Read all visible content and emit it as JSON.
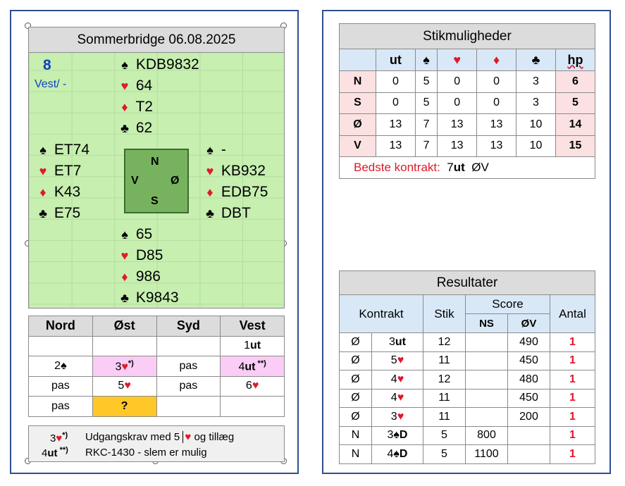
{
  "deal": {
    "title": "Sommerbridge 06.08.2025",
    "board_number": "8",
    "dealer_vul": "Vest/ -",
    "compass": {
      "n": "N",
      "s": "S",
      "w": "V",
      "e": "Ø"
    },
    "north": {
      "spades": "KDB9832",
      "hearts": "64",
      "diamonds": "T2",
      "clubs": "62"
    },
    "west": {
      "spades": "ET74",
      "hearts": "ET7",
      "diamonds": "K43",
      "clubs": "E75"
    },
    "east": {
      "spades": "-",
      "hearts": "KB932",
      "diamonds": "EDB75",
      "clubs": "DBT"
    },
    "south": {
      "spades": "65",
      "hearts": "D85",
      "diamonds": "986",
      "clubs": "K9843"
    },
    "suit_symbols": {
      "spades": "♠",
      "hearts": "♥",
      "diamonds": "♦",
      "clubs": "♣"
    }
  },
  "bidding": {
    "headers": [
      "Nord",
      "Øst",
      "Syd",
      "Vest"
    ],
    "r1": {
      "w_level": "1",
      "w_strain": "ut"
    },
    "r2": {
      "n_level": "2",
      "e_level": "3",
      "e_mark": "*)",
      "s": "pas",
      "w_level": "4",
      "w_strain": "ut",
      "w_mark": " **)"
    },
    "r3": {
      "n": "pas",
      "e_level": "5",
      "s": "pas",
      "w_level": "6"
    },
    "r4": {
      "n": "pas",
      "e": "?"
    }
  },
  "footnotes": {
    "f1": {
      "level": "3",
      "mark": "*)",
      "text_a": "Udgangskrav med 5",
      "text_b": "og tillæg"
    },
    "f2": {
      "level": "4",
      "strain": "ut",
      "mark": " **)",
      "text": "RKC-1430 - slem er mulig"
    }
  },
  "stik": {
    "title": "Stikmuligheder",
    "col_ut": "ut",
    "col_hp": "hp",
    "rows": [
      {
        "label": "N",
        "vals": [
          "0",
          "5",
          "0",
          "0",
          "3"
        ],
        "hp": "6"
      },
      {
        "label": "S",
        "vals": [
          "0",
          "5",
          "0",
          "0",
          "3"
        ],
        "hp": "5"
      },
      {
        "label": "Ø",
        "vals": [
          "13",
          "7",
          "13",
          "13",
          "10"
        ],
        "hp": "14"
      },
      {
        "label": "V",
        "vals": [
          "13",
          "7",
          "13",
          "13",
          "10"
        ],
        "hp": "15"
      }
    ],
    "best_label": "Bedste kontrakt:",
    "best_level": "7",
    "best_strain": "ut",
    "best_side": "ØV"
  },
  "results": {
    "title": "Resultater",
    "h_contract": "Kontrakt",
    "h_stik": "Stik",
    "h_score": "Score",
    "h_antal": "Antal",
    "h_ns": "NS",
    "h_ov": "ØV",
    "rows": [
      {
        "decl": "Ø",
        "level": "3",
        "strain": "ut",
        "stik": "12",
        "ns": "",
        "ov": "490",
        "antal": "1"
      },
      {
        "decl": "Ø",
        "level": "5",
        "strain": "",
        "stik": "11",
        "ns": "",
        "ov": "450",
        "antal": "1"
      },
      {
        "decl": "Ø",
        "level": "4",
        "strain": "",
        "stik": "12",
        "ns": "",
        "ov": "480",
        "antal": "1"
      },
      {
        "decl": "Ø",
        "level": "4",
        "strain": "",
        "stik": "11",
        "ns": "",
        "ov": "450",
        "antal": "1"
      },
      {
        "decl": "Ø",
        "level": "3",
        "strain": "",
        "stik": "11",
        "ns": "",
        "ov": "200",
        "antal": "1"
      },
      {
        "decl": "N",
        "level": "3",
        "strain": "D",
        "stik": "5",
        "ns": "800",
        "ov": "",
        "antal": "1"
      },
      {
        "decl": "N",
        "level": "4",
        "strain": "D",
        "stik": "5",
        "ns": "1100",
        "ov": "",
        "antal": "1"
      }
    ]
  }
}
